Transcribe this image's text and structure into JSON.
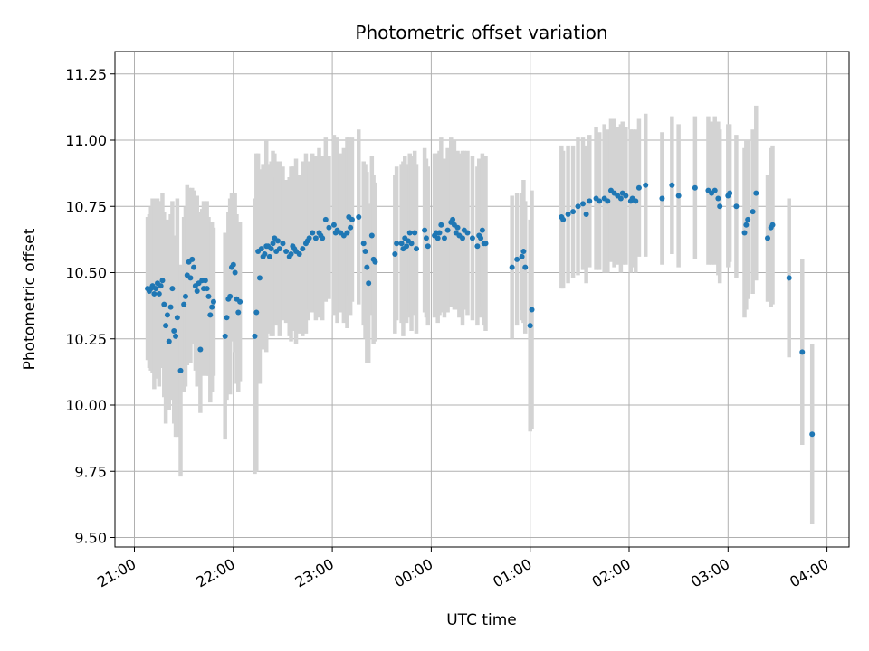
{
  "chart_data": {
    "type": "scatter",
    "title": "Photometric offset variation",
    "xlabel": "UTC time",
    "ylabel": "Photometric offset",
    "x_axis": {
      "type": "time",
      "range": [
        "21:00",
        "04:00"
      ],
      "ticks": [
        "21:00",
        "22:00",
        "23:00",
        "00:00",
        "01:00",
        "02:00",
        "03:00",
        "04:00"
      ]
    },
    "ylim": [
      9.46,
      11.33
    ],
    "y_ticks": [
      "9.50",
      "9.75",
      "10.00",
      "10.25",
      "10.50",
      "10.75",
      "11.00",
      "11.25"
    ],
    "grid": true,
    "marker_color": "#1f77b4",
    "errorbar_color": "#d3d3d3",
    "points": [
      [
        "21:08",
        10.44,
        0.27
      ],
      [
        "21:09",
        10.43,
        0.29
      ],
      [
        "21:10",
        10.44,
        0.31
      ],
      [
        "21:11",
        10.45,
        0.33
      ],
      [
        "21:12",
        10.42,
        0.36
      ],
      [
        "21:13",
        10.44,
        0.34
      ],
      [
        "21:14",
        10.46,
        0.32
      ],
      [
        "21:15",
        10.42,
        0.35
      ],
      [
        "21:16",
        10.45,
        0.3
      ],
      [
        "21:17",
        10.47,
        0.33
      ],
      [
        "21:18",
        10.38,
        0.35
      ],
      [
        "21:19",
        10.3,
        0.37
      ],
      [
        "21:20",
        10.34,
        0.36
      ],
      [
        "21:21",
        10.24,
        0.26
      ],
      [
        "21:22",
        10.37,
        0.35
      ],
      [
        "21:23",
        10.44,
        0.33
      ],
      [
        "21:24",
        10.28,
        0.35
      ],
      [
        "21:25",
        10.26,
        0.38
      ],
      [
        "21:26",
        10.33,
        0.45
      ],
      [
        "21:28",
        10.13,
        0.4
      ],
      [
        "21:30",
        10.38,
        0.33
      ],
      [
        "21:31",
        10.41,
        0.34
      ],
      [
        "21:32",
        10.49,
        0.34
      ],
      [
        "21:33",
        10.54,
        0.28
      ],
      [
        "21:34",
        10.48,
        0.32
      ],
      [
        "21:35",
        10.55,
        0.27
      ],
      [
        "21:36",
        10.52,
        0.29
      ],
      [
        "21:37",
        10.45,
        0.32
      ],
      [
        "21:38",
        10.43,
        0.36
      ],
      [
        "21:39",
        10.46,
        0.27
      ],
      [
        "21:40",
        10.21,
        0.24
      ],
      [
        "21:41",
        10.47,
        0.27
      ],
      [
        "21:42",
        10.44,
        0.33
      ],
      [
        "21:43",
        10.47,
        0.29
      ],
      [
        "21:44",
        10.44,
        0.33
      ],
      [
        "21:45",
        10.41,
        0.3
      ],
      [
        "21:46",
        10.34,
        0.33
      ],
      [
        "21:47",
        10.37,
        0.32
      ],
      [
        "21:48",
        10.39,
        0.28
      ],
      [
        "21:55",
        10.26,
        0.39
      ],
      [
        "21:56",
        10.33,
        0.31
      ],
      [
        "21:57",
        10.4,
        0.33
      ],
      [
        "21:58",
        10.41,
        0.37
      ],
      [
        "21:59",
        10.52,
        0.28
      ],
      [
        "22:00",
        10.53,
        0.27
      ],
      [
        "22:01",
        10.5,
        0.3
      ],
      [
        "22:02",
        10.4,
        0.32
      ],
      [
        "22:03",
        10.35,
        0.3
      ],
      [
        "22:04",
        10.39,
        0.3
      ],
      [
        "22:13",
        10.26,
        0.52
      ],
      [
        "22:14",
        10.35,
        0.6
      ],
      [
        "22:15",
        10.58,
        0.37
      ],
      [
        "22:16",
        10.48,
        0.4
      ],
      [
        "22:17",
        10.59,
        0.3
      ],
      [
        "22:18",
        10.56,
        0.35
      ],
      [
        "22:19",
        10.57,
        0.33
      ],
      [
        "22:20",
        10.6,
        0.4
      ],
      [
        "22:21",
        10.6,
        0.31
      ],
      [
        "22:22",
        10.56,
        0.29
      ],
      [
        "22:23",
        10.59,
        0.33
      ],
      [
        "22:24",
        10.61,
        0.35
      ],
      [
        "22:25",
        10.63,
        0.32
      ],
      [
        "22:26",
        10.58,
        0.28
      ],
      [
        "22:27",
        10.62,
        0.3
      ],
      [
        "22:28",
        10.59,
        0.33
      ],
      [
        "22:30",
        10.61,
        0.29
      ],
      [
        "22:32",
        10.58,
        0.27
      ],
      [
        "22:34",
        10.56,
        0.3
      ],
      [
        "22:35",
        10.57,
        0.33
      ],
      [
        "22:36",
        10.6,
        0.3
      ],
      [
        "22:37",
        10.59,
        0.31
      ],
      [
        "22:38",
        10.58,
        0.35
      ],
      [
        "22:40",
        10.57,
        0.3
      ],
      [
        "22:42",
        10.59,
        0.33
      ],
      [
        "22:44",
        10.61,
        0.34
      ],
      [
        "22:45",
        10.62,
        0.3
      ],
      [
        "22:46",
        10.63,
        0.27
      ],
      [
        "22:48",
        10.65,
        0.3
      ],
      [
        "22:50",
        10.63,
        0.31
      ],
      [
        "22:52",
        10.65,
        0.32
      ],
      [
        "22:53",
        10.64,
        0.3
      ],
      [
        "22:54",
        10.63,
        0.31
      ],
      [
        "22:56",
        10.7,
        0.31
      ],
      [
        "22:58",
        10.67,
        0.27
      ],
      [
        "23:01",
        10.68,
        0.34
      ],
      [
        "23:02",
        10.65,
        0.3
      ],
      [
        "23:03",
        10.66,
        0.35
      ],
      [
        "23:05",
        10.65,
        0.3
      ],
      [
        "23:07",
        10.64,
        0.33
      ],
      [
        "23:09",
        10.65,
        0.36
      ],
      [
        "23:10",
        10.71,
        0.3
      ],
      [
        "23:11",
        10.67,
        0.33
      ],
      [
        "23:12",
        10.7,
        0.31
      ],
      [
        "23:16",
        10.71,
        0.33
      ],
      [
        "23:19",
        10.61,
        0.31
      ],
      [
        "23:20",
        10.58,
        0.33
      ],
      [
        "23:21",
        10.52,
        0.36
      ],
      [
        "23:22",
        10.46,
        0.3
      ],
      [
        "23:24",
        10.64,
        0.3
      ],
      [
        "23:25",
        10.55,
        0.32
      ],
      [
        "23:26",
        10.54,
        0.3
      ],
      [
        "23:38",
        10.57,
        0.3
      ],
      [
        "23:39",
        10.61,
        0.29
      ],
      [
        "23:42",
        10.61,
        0.3
      ],
      [
        "23:43",
        10.59,
        0.33
      ],
      [
        "23:44",
        10.63,
        0.31
      ],
      [
        "23:45",
        10.6,
        0.29
      ],
      [
        "23:46",
        10.62,
        0.29
      ],
      [
        "23:47",
        10.65,
        0.3
      ],
      [
        "23:48",
        10.61,
        0.33
      ],
      [
        "23:50",
        10.65,
        0.31
      ],
      [
        "23:51",
        10.59,
        0.32
      ],
      [
        "23:56",
        10.66,
        0.31
      ],
      [
        "23:57",
        10.63,
        0.3
      ],
      [
        "23:58",
        10.6,
        0.3
      ],
      [
        "00:02",
        10.64,
        0.31
      ],
      [
        "00:03",
        10.65,
        0.3
      ],
      [
        "00:04",
        10.63,
        0.32
      ],
      [
        "00:05",
        10.65,
        0.31
      ],
      [
        "00:06",
        10.68,
        0.33
      ],
      [
        "00:08",
        10.63,
        0.3
      ],
      [
        "00:10",
        10.66,
        0.31
      ],
      [
        "00:12",
        10.69,
        0.32
      ],
      [
        "00:13",
        10.7,
        0.3
      ],
      [
        "00:14",
        10.68,
        0.32
      ],
      [
        "00:15",
        10.65,
        0.29
      ],
      [
        "00:16",
        10.67,
        0.29
      ],
      [
        "00:17",
        10.64,
        0.31
      ],
      [
        "00:19",
        10.63,
        0.33
      ],
      [
        "00:20",
        10.66,
        0.3
      ],
      [
        "00:22",
        10.65,
        0.31
      ],
      [
        "00:25",
        10.63,
        0.31
      ],
      [
        "00:28",
        10.6,
        0.3
      ],
      [
        "00:29",
        10.64,
        0.29
      ],
      [
        "00:30",
        10.63,
        0.3
      ],
      [
        "00:31",
        10.66,
        0.29
      ],
      [
        "00:32",
        10.61,
        0.31
      ],
      [
        "00:33",
        10.61,
        0.33
      ],
      [
        "00:49",
        10.52,
        0.27
      ],
      [
        "00:52",
        10.55,
        0.25
      ],
      [
        "00:55",
        10.56,
        0.24
      ],
      [
        "00:56",
        10.58,
        0.27
      ],
      [
        "00:57",
        10.52,
        0.25
      ],
      [
        "01:00",
        10.3,
        0.4
      ],
      [
        "01:01",
        10.36,
        0.45
      ],
      [
        "01:19",
        10.71,
        0.27
      ],
      [
        "01:20",
        10.7,
        0.26
      ],
      [
        "01:23",
        10.72,
        0.26
      ],
      [
        "01:26",
        10.73,
        0.25
      ],
      [
        "01:29",
        10.75,
        0.26
      ],
      [
        "01:32",
        10.76,
        0.25
      ],
      [
        "01:34",
        10.72,
        0.26
      ],
      [
        "01:36",
        10.77,
        0.25
      ],
      [
        "01:40",
        10.78,
        0.27
      ],
      [
        "01:42",
        10.77,
        0.26
      ],
      [
        "01:45",
        10.78,
        0.28
      ],
      [
        "01:47",
        10.77,
        0.27
      ],
      [
        "01:49",
        10.81,
        0.27
      ],
      [
        "01:51",
        10.8,
        0.28
      ],
      [
        "01:53",
        10.79,
        0.26
      ],
      [
        "01:55",
        10.78,
        0.28
      ],
      [
        "01:56",
        10.8,
        0.27
      ],
      [
        "01:58",
        10.79,
        0.26
      ],
      [
        "02:01",
        10.77,
        0.27
      ],
      [
        "02:02",
        10.78,
        0.26
      ],
      [
        "02:04",
        10.77,
        0.27
      ],
      [
        "02:06",
        10.82,
        0.26
      ],
      [
        "02:10",
        10.83,
        0.27
      ],
      [
        "02:20",
        10.78,
        0.25
      ],
      [
        "02:26",
        10.83,
        0.26
      ],
      [
        "02:30",
        10.79,
        0.27
      ],
      [
        "02:40",
        10.82,
        0.27
      ],
      [
        "02:48",
        10.81,
        0.28
      ],
      [
        "02:50",
        10.8,
        0.27
      ],
      [
        "02:52",
        10.81,
        0.28
      ],
      [
        "02:54",
        10.78,
        0.29
      ],
      [
        "02:55",
        10.75,
        0.29
      ],
      [
        "03:00",
        10.79,
        0.27
      ],
      [
        "03:01",
        10.8,
        0.26
      ],
      [
        "03:05",
        10.75,
        0.27
      ],
      [
        "03:10",
        10.65,
        0.32
      ],
      [
        "03:11",
        10.68,
        0.32
      ],
      [
        "03:12",
        10.7,
        0.3
      ],
      [
        "03:15",
        10.73,
        0.31
      ],
      [
        "03:17",
        10.8,
        0.33
      ],
      [
        "03:24",
        10.63,
        0.24
      ],
      [
        "03:26",
        10.67,
        0.3
      ],
      [
        "03:27",
        10.68,
        0.3
      ],
      [
        "03:37",
        10.48,
        0.3
      ],
      [
        "03:45",
        10.2,
        0.35
      ],
      [
        "03:51",
        9.89,
        0.34
      ]
    ]
  }
}
